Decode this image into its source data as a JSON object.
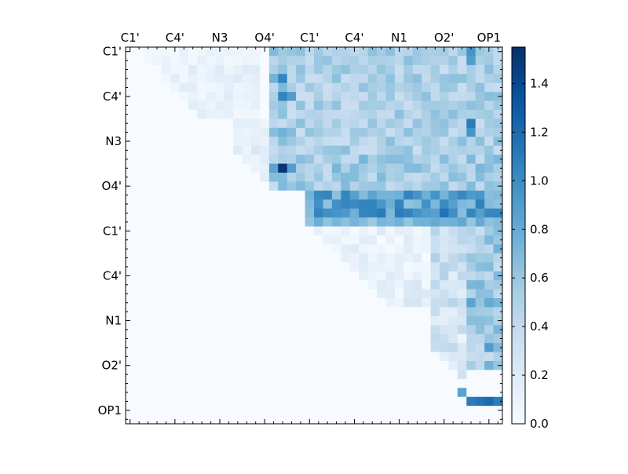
{
  "chart_data": {
    "type": "heatmap",
    "title": "",
    "xlabel": "",
    "ylabel": "",
    "grid": false,
    "n": 42,
    "x_tick_labels": [
      "C1'",
      "C4'",
      "N3",
      "O4'",
      "C1'",
      "C4'",
      "N1",
      "O2'",
      "OP1"
    ],
    "y_tick_labels": [
      "C1'",
      "C4'",
      "N3",
      "O4'",
      "C1'",
      "C4'",
      "N1",
      "O2'",
      "OP1"
    ],
    "tick_label_indices": [
      0.5,
      5.5,
      10.5,
      15.5,
      20.5,
      25.5,
      30.5,
      35.5,
      40.5
    ],
    "colormap": {
      "name": "Blues",
      "stops": [
        "#f7fbff",
        "#deebf7",
        "#c6dbef",
        "#9ecae1",
        "#6baed6",
        "#4292c6",
        "#2171b5",
        "#08519c",
        "#08306b"
      ]
    },
    "colorbar": {
      "min": 0.0,
      "max": 1.55,
      "tick_values": [
        0.0,
        0.2,
        0.4,
        0.6,
        0.8,
        1.0,
        1.2,
        1.4
      ],
      "tick_labels": [
        "0.0",
        "0.2",
        "0.4",
        "0.6",
        "0.8",
        "1.0",
        "1.2",
        "1.4"
      ]
    },
    "bands": [
      {
        "r0": 0,
        "r1": 2,
        "c0": 2,
        "c1": 15,
        "v": 0.08,
        "var": 0.05
      },
      {
        "r0": 2,
        "r1": 8,
        "c0": 4,
        "c1": 15,
        "v": 0.12,
        "var": 0.08,
        "diag": true
      },
      {
        "r0": 8,
        "r1": 16,
        "c0": 12,
        "c1": 16,
        "v": 0.16,
        "var": 0.08,
        "diag": true
      },
      {
        "r0": 0,
        "r1": 16,
        "c0": 16,
        "c1": 20,
        "v": 0.5,
        "var": 0.2
      },
      {
        "r0": 0,
        "r1": 12,
        "c0": 20,
        "c1": 42,
        "v": 0.5,
        "var": 0.16
      },
      {
        "r0": 12,
        "r1": 16,
        "c0": 20,
        "c1": 42,
        "v": 0.55,
        "var": 0.18
      },
      {
        "r0": 16,
        "r1": 19,
        "c0": 20,
        "c1": 42,
        "v": 0.85,
        "var": 0.22
      },
      {
        "r0": 19,
        "r1": 20,
        "c0": 20,
        "c1": 42,
        "v": 0.7,
        "var": 0.12
      },
      {
        "r0": 20,
        "r1": 26,
        "c0": 21,
        "c1": 35,
        "v": 0.1,
        "var": 0.1,
        "diag": true
      },
      {
        "r0": 26,
        "r1": 29,
        "c0": 27,
        "c1": 35,
        "v": 0.15,
        "var": 0.12,
        "diag": true
      },
      {
        "r0": 20,
        "r1": 32,
        "c0": 34,
        "c1": 38,
        "v": 0.32,
        "var": 0.18
      },
      {
        "r0": 20,
        "r1": 36,
        "c0": 38,
        "c1": 42,
        "v": 0.55,
        "var": 0.2
      },
      {
        "r0": 32,
        "r1": 38,
        "c0": 34,
        "c1": 38,
        "v": 0.25,
        "var": 0.18,
        "diag": true
      }
    ],
    "points": [
      {
        "r": 13,
        "c": 17,
        "v": 1.52
      },
      {
        "r": 13,
        "c": 16,
        "v": 0.85
      },
      {
        "r": 13,
        "c": 18,
        "v": 0.9
      },
      {
        "r": 3,
        "c": 17,
        "v": 1.05
      },
      {
        "r": 3,
        "c": 16,
        "v": 0.75
      },
      {
        "r": 5,
        "c": 17,
        "v": 1.05
      },
      {
        "r": 5,
        "c": 18,
        "v": 0.9
      },
      {
        "r": 7,
        "c": 17,
        "v": 0.65
      },
      {
        "r": 9,
        "c": 17,
        "v": 0.75
      },
      {
        "r": 18,
        "c": 26,
        "v": 1.05
      },
      {
        "r": 18,
        "c": 28,
        "v": 1.1
      },
      {
        "r": 18,
        "c": 30,
        "v": 1.1
      },
      {
        "r": 18,
        "c": 31,
        "v": 1.05
      },
      {
        "r": 18,
        "c": 35,
        "v": 1.15
      },
      {
        "r": 18,
        "c": 21,
        "v": 1.05
      },
      {
        "r": 0,
        "c": 38,
        "v": 0.95
      },
      {
        "r": 1,
        "c": 38,
        "v": 0.9
      },
      {
        "r": 8,
        "c": 38,
        "v": 1.1
      },
      {
        "r": 9,
        "c": 38,
        "v": 0.95
      },
      {
        "r": 28,
        "c": 38,
        "v": 0.85
      },
      {
        "r": 28,
        "c": 40,
        "v": 0.8
      },
      {
        "r": 33,
        "c": 40,
        "v": 0.9
      },
      {
        "r": 35,
        "c": 40,
        "v": 0.75
      },
      {
        "r": 37,
        "c": 39,
        "v": 0.0
      },
      {
        "r": 37,
        "c": 40,
        "v": 0.0
      },
      {
        "r": 37,
        "c": 41,
        "v": 0.0
      },
      {
        "r": 38,
        "c": 38,
        "v": 0.0
      },
      {
        "r": 38,
        "c": 39,
        "v": 0.0
      },
      {
        "r": 38,
        "c": 40,
        "v": 0.0
      },
      {
        "r": 38,
        "c": 41,
        "v": 0.0
      },
      {
        "r": 37,
        "c": 38,
        "v": 0.0
      },
      {
        "r": 38,
        "c": 37,
        "v": 0.85
      },
      {
        "r": 38,
        "c": 38,
        "v": 0.0
      },
      {
        "r": 39,
        "c": 39,
        "v": 1.15
      },
      {
        "r": 39,
        "c": 40,
        "v": 1.2
      },
      {
        "r": 39,
        "c": 41,
        "v": 1.1
      },
      {
        "r": 39,
        "c": 38,
        "v": 1.1
      }
    ]
  }
}
